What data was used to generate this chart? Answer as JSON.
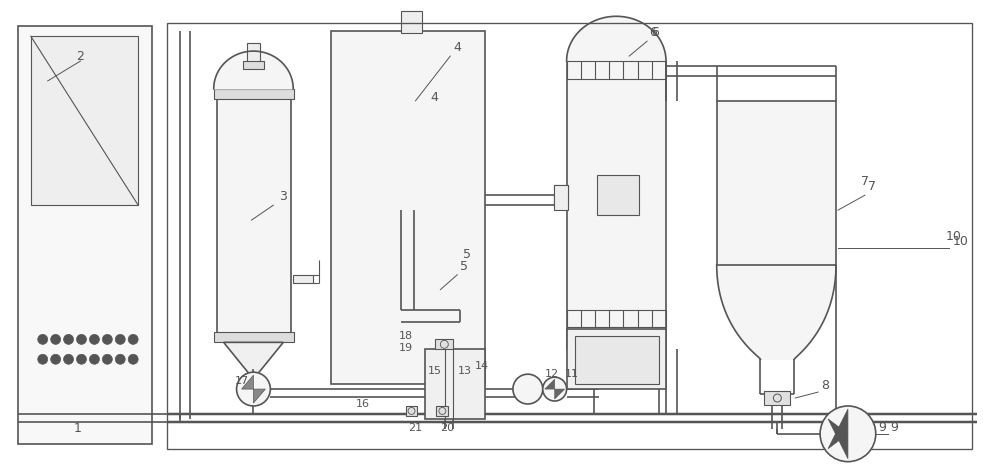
{
  "bg_color": "#ffffff",
  "line_color": "#555555",
  "lw": 1.2,
  "tlw": 0.8
}
